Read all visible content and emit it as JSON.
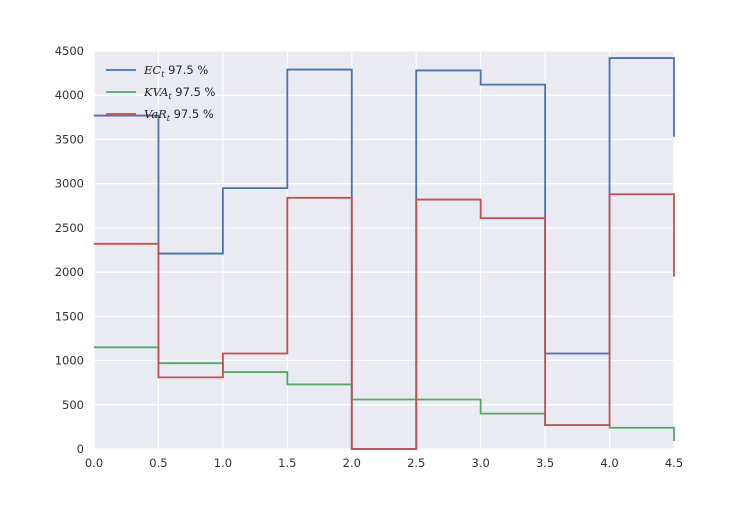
{
  "chart_data": {
    "type": "line",
    "step": "post",
    "x": [
      0.0,
      0.5,
      1.0,
      1.5,
      2.0,
      2.5,
      3.0,
      3.5,
      4.0,
      4.5
    ],
    "xlim": [
      0.0,
      4.5
    ],
    "ylim": [
      0,
      4500
    ],
    "xticks": [
      "0.0",
      "0.5",
      "1.0",
      "1.5",
      "2.0",
      "2.5",
      "3.0",
      "3.5",
      "4.0",
      "4.5"
    ],
    "yticks": [
      "0",
      "500",
      "1000",
      "1500",
      "2000",
      "2500",
      "3000",
      "3500",
      "4000",
      "4500"
    ],
    "grid": true,
    "legend_position": "top-left",
    "series": [
      {
        "name": "EC_t 97.5 %",
        "label_main": "EC",
        "label_sub": "t",
        "label_suffix": " 97.5 %",
        "color": "#4c72b0",
        "values": [
          3770,
          2210,
          2950,
          4290,
          0,
          4280,
          4120,
          1080,
          4420,
          3530
        ]
      },
      {
        "name": "KVA_t 97.5 %",
        "label_main": "KVA",
        "label_sub": "t",
        "label_suffix": " 97.5 %",
        "color": "#55a868",
        "values": [
          1150,
          970,
          870,
          730,
          560,
          560,
          400,
          270,
          240,
          90
        ]
      },
      {
        "name": "VaR_t 97.5 %",
        "label_main": "VaR",
        "label_sub": "t",
        "label_suffix": " 97.5 %",
        "color": "#c44e52",
        "values": [
          2320,
          810,
          1080,
          2840,
          0,
          2820,
          2610,
          270,
          2880,
          1950
        ]
      }
    ]
  }
}
